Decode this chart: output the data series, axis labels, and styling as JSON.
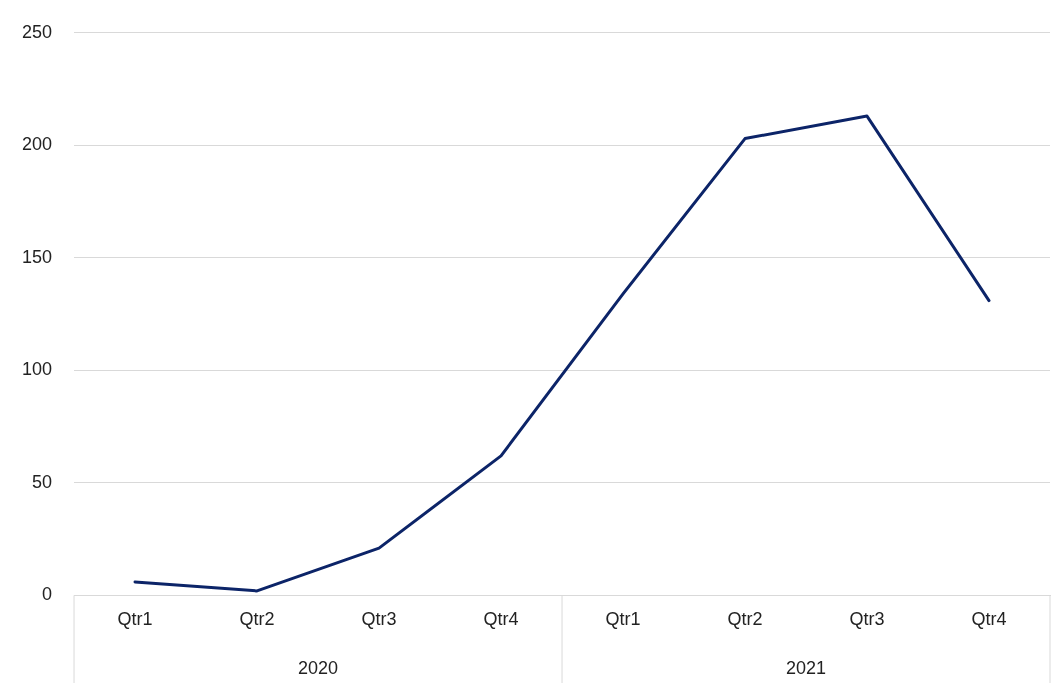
{
  "chart_data": {
    "type": "line",
    "categories": [
      "Qtr1",
      "Qtr2",
      "Qtr3",
      "Qtr4",
      "Qtr1",
      "Qtr2",
      "Qtr3",
      "Qtr4"
    ],
    "series": [
      {
        "color": "#0c2468",
        "values": [
          6,
          2,
          21,
          62,
          134,
          203,
          213,
          131
        ]
      }
    ],
    "ylim": [
      0,
      250
    ],
    "yticks": [
      0,
      50,
      100,
      150,
      200,
      250
    ],
    "grid": "y",
    "marker": "none",
    "line_style": "solid",
    "annotations": [
      "2020",
      "2021"
    ]
  }
}
